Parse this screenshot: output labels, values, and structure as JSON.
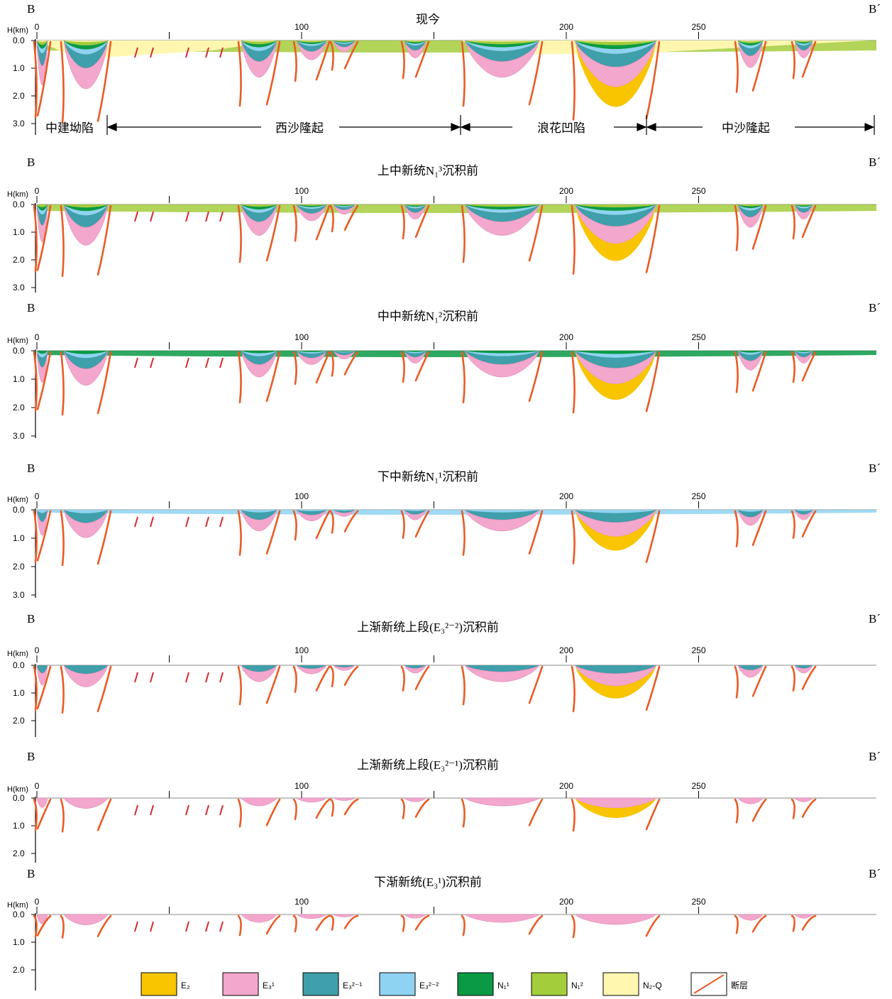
{
  "panels": [
    {
      "title": "现今",
      "left": "B",
      "right": "B´"
    },
    {
      "title": "上中新统N₁³沉积前",
      "left": "B",
      "right": "B´"
    },
    {
      "title": "中中新统N₁²沉积前",
      "left": "B",
      "right": "B´"
    },
    {
      "title": "下中新统N₁¹沉积前",
      "left": "B",
      "right": "B´"
    },
    {
      "title": "上渐新统上段(E₃²⁻²)沉积前",
      "left": "B",
      "right": "B´"
    },
    {
      "title": "上渐新统上段(E₃²⁻¹)沉积前",
      "left": "B",
      "right": "B´"
    },
    {
      "title": "下渐新统(E₃¹)沉积前",
      "left": "B",
      "right": "B´"
    }
  ],
  "axis": {
    "ylabel": "H(km)",
    "x_ticks": [
      "0",
      "100",
      "200",
      "250"
    ],
    "y_ticks_a": [
      "0.0",
      "1.0",
      "2.0",
      "3.0"
    ],
    "y_ticks_b": [
      "0.0",
      "1.0",
      "2.0"
    ]
  },
  "regions": [
    "中建坳陷",
    "西沙隆起",
    "浪花凹陷",
    "中沙隆起"
  ],
  "legend": [
    {
      "label": "E₂",
      "color": "#f9c400"
    },
    {
      "label": "E₃¹",
      "color": "#f3a7cc"
    },
    {
      "label": "E₃²⁻¹",
      "color": "#3f9faa"
    },
    {
      "label": "E₃²⁻²",
      "color": "#8fd3f2"
    },
    {
      "label": "N₁¹",
      "color": "#0a9a45"
    },
    {
      "label": "N₁²",
      "color": "#a4cd3c"
    },
    {
      "label": "N₂-Q",
      "color": "#fff7b0"
    },
    {
      "label": "断层",
      "color": "#ea5b25"
    }
  ]
}
